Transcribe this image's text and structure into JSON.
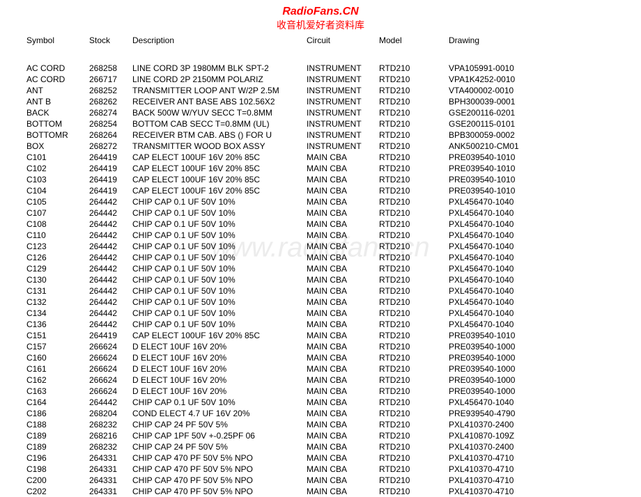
{
  "header": {
    "title": "RadioFans.CN",
    "subtitle": "收音机爱好者资料库"
  },
  "watermark": "www.radiofans.cn",
  "table": {
    "columns": [
      "Symbol",
      "Stock",
      "Description",
      "Circuit",
      "Model",
      "Drawing"
    ],
    "rows": [
      [
        "AC CORD",
        "268258",
        "LINE CORD 3P 1980MM BLK SPT-2",
        "INSTRUMENT",
        "RTD210",
        "VPA105991-0010"
      ],
      [
        "AC CORD",
        "266717",
        "LINE CORD 2P 2150MM POLARIZ",
        "INSTRUMENT",
        "RTD210",
        "VPA1K4252-0010"
      ],
      [
        "ANT",
        "268252",
        "TRANSMITTER LOOP ANT W/2P 2.5M",
        "INSTRUMENT",
        "RTD210",
        "VTA400002-0010"
      ],
      [
        "ANT B",
        "268262",
        "RECEIVER ANT BASE ABS 102.56X2",
        "INSTRUMENT",
        "RTD210",
        "BPH300039-0001"
      ],
      [
        "BACK",
        "268274",
        "BACK 500W W/YUV SECC T=0.8MM",
        "INSTRUMENT",
        "RTD210",
        "GSE200116-0201"
      ],
      [
        "BOTTOM",
        "268254",
        "BOTTOM CAB SECC T=0.8MM (UL)",
        "INSTRUMENT",
        "RTD210",
        "GSE200115-0101"
      ],
      [
        "BOTTOMR",
        "268264",
        "RECEIVER BTM CAB. ABS () FOR U",
        "INSTRUMENT",
        "RTD210",
        "BPB300059-0002"
      ],
      [
        "BOX",
        "268272",
        "TRANSMITTER WOOD BOX ASSY",
        "INSTRUMENT",
        "RTD210",
        "ANK500210-CM01"
      ],
      [
        "C101",
        "264419",
        "CAP ELECT 100UF 16V 20%  85C",
        "MAIN CBA",
        "RTD210",
        "PRE039540-1010"
      ],
      [
        "C102",
        "264419",
        "CAP ELECT 100UF 16V 20%  85C",
        "MAIN CBA",
        "RTD210",
        "PRE039540-1010"
      ],
      [
        "C103",
        "264419",
        "CAP ELECT 100UF 16V 20%  85C",
        "MAIN CBA",
        "RTD210",
        "PRE039540-1010"
      ],
      [
        "C104",
        "264419",
        "CAP ELECT 100UF 16V 20%  85C",
        "MAIN CBA",
        "RTD210",
        "PRE039540-1010"
      ],
      [
        "C105",
        "264442",
        "CHIP CAP 0.1 UF 50V 10%",
        "MAIN CBA",
        "RTD210",
        "PXL456470-1040"
      ],
      [
        "C107",
        "264442",
        "CHIP CAP 0.1 UF 50V 10%",
        "MAIN CBA",
        "RTD210",
        "PXL456470-1040"
      ],
      [
        "C108",
        "264442",
        "CHIP CAP 0.1 UF 50V 10%",
        "MAIN CBA",
        "RTD210",
        "PXL456470-1040"
      ],
      [
        "C110",
        "264442",
        "CHIP CAP 0.1 UF 50V 10%",
        "MAIN CBA",
        "RTD210",
        "PXL456470-1040"
      ],
      [
        "C123",
        "264442",
        "CHIP CAP 0.1 UF 50V 10%",
        "MAIN CBA",
        "RTD210",
        "PXL456470-1040"
      ],
      [
        "C126",
        "264442",
        "CHIP CAP 0.1 UF 50V 10%",
        "MAIN CBA",
        "RTD210",
        "PXL456470-1040"
      ],
      [
        "C129",
        "264442",
        "CHIP CAP 0.1 UF 50V 10%",
        "MAIN CBA",
        "RTD210",
        "PXL456470-1040"
      ],
      [
        "C130",
        "264442",
        "CHIP CAP 0.1 UF 50V 10%",
        "MAIN CBA",
        "RTD210",
        "PXL456470-1040"
      ],
      [
        "C131",
        "264442",
        "CHIP CAP 0.1 UF 50V 10%",
        "MAIN CBA",
        "RTD210",
        "PXL456470-1040"
      ],
      [
        "C132",
        "264442",
        "CHIP CAP 0.1 UF 50V 10%",
        "MAIN CBA",
        "RTD210",
        "PXL456470-1040"
      ],
      [
        "C134",
        "264442",
        "CHIP CAP 0.1 UF 50V 10%",
        "MAIN CBA",
        "RTD210",
        "PXL456470-1040"
      ],
      [
        "C136",
        "264442",
        "CHIP CAP 0.1 UF 50V 10%",
        "MAIN CBA",
        "RTD210",
        "PXL456470-1040"
      ],
      [
        "C151",
        "264419",
        "CAP ELECT 100UF 16V 20%  85C",
        "MAIN CBA",
        "RTD210",
        "PRE039540-1010"
      ],
      [
        "C157",
        "266624",
        "D ELECT 10UF  16V    20%",
        "MAIN CBA",
        "RTD210",
        "PRE039540-1000"
      ],
      [
        "C160",
        "266624",
        "D ELECT 10UF  16V    20%",
        "MAIN CBA",
        "RTD210",
        "PRE039540-1000"
      ],
      [
        "C161",
        "266624",
        "D ELECT 10UF  16V    20%",
        "MAIN CBA",
        "RTD210",
        "PRE039540-1000"
      ],
      [
        "C162",
        "266624",
        "D ELECT 10UF  16V    20%",
        "MAIN CBA",
        "RTD210",
        "PRE039540-1000"
      ],
      [
        "C163",
        "266624",
        "D ELECT 10UF  16V    20%",
        "MAIN CBA",
        "RTD210",
        "PRE039540-1000"
      ],
      [
        "C164",
        "264442",
        "CHIP CAP 0.1 UF 50V 10%",
        "MAIN CBA",
        "RTD210",
        "PXL456470-1040"
      ],
      [
        "C186",
        "268204",
        "COND ELECT 4.7 UF 16V 20%",
        "MAIN CBA",
        "RTD210",
        "PRE939540-4790"
      ],
      [
        "C188",
        "268232",
        "CHIP CAP   24 PF 50V 5%",
        "MAIN CBA",
        "RTD210",
        "PXL410370-2400"
      ],
      [
        "C189",
        "268216",
        "CHIP CAP 1PF 50V +-0.25PF   06",
        "MAIN CBA",
        "RTD210",
        "PXL410870-109Z"
      ],
      [
        "C189",
        "268232",
        "CHIP CAP   24 PF 50V 5%",
        "MAIN CBA",
        "RTD210",
        "PXL410370-2400"
      ],
      [
        "C196",
        "264331",
        "CHIP CAP 470 PF 50V 5%  NPO",
        "MAIN CBA",
        "RTD210",
        "PXL410370-4710"
      ],
      [
        "C198",
        "264331",
        "CHIP CAP 470 PF 50V 5%  NPO",
        "MAIN CBA",
        "RTD210",
        "PXL410370-4710"
      ],
      [
        "C200",
        "264331",
        "CHIP CAP 470 PF 50V 5%  NPO",
        "MAIN CBA",
        "RTD210",
        "PXL410370-4710"
      ],
      [
        "C202",
        "264331",
        "CHIP CAP 470 PF 50V 5%  NPO",
        "MAIN CBA",
        "RTD210",
        "PXL410370-4710"
      ]
    ]
  }
}
